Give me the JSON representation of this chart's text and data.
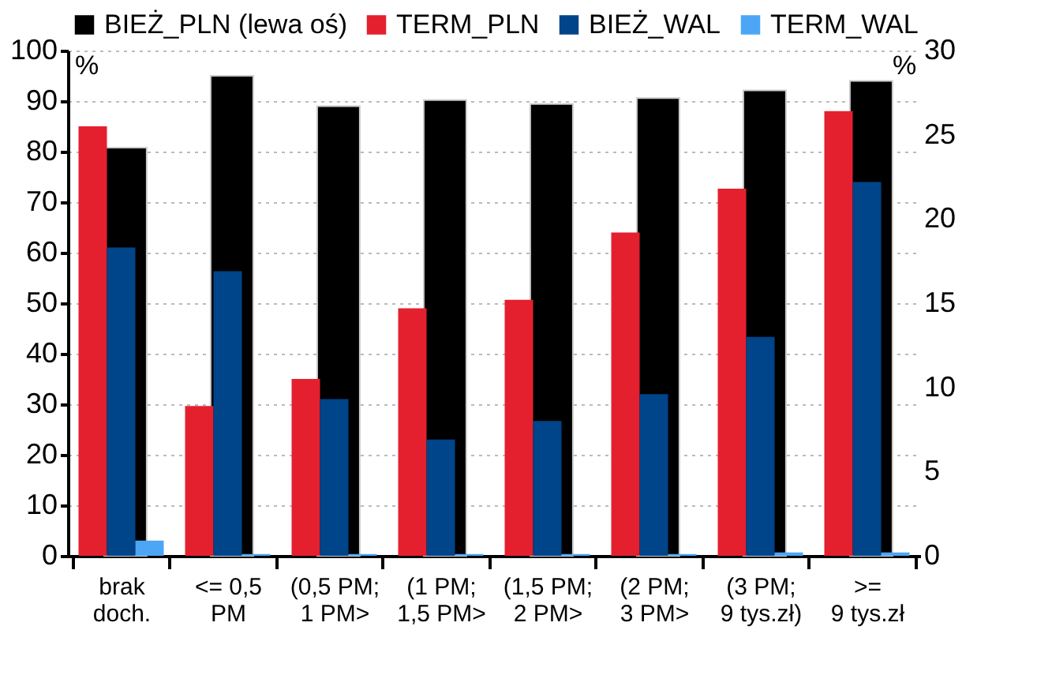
{
  "chart_data": {
    "type": "bar",
    "categories": [
      "brak\ndoch.",
      "<= 0,5\nPM",
      "(0,5 PM;\n1 PM>",
      "(1 PM;\n1,5 PM>",
      "(1,5 PM;\n2 PM>",
      "(2 PM;\n3 PM>",
      "(3 PM;\n9 tys.zł)",
      ">=\n9 tys.zł"
    ],
    "series": [
      {
        "name": "BIEŻ_PLN (lewa oś)",
        "color": "#000000",
        "axis": "y",
        "values": [
          80.8,
          95.0,
          89.0,
          90.2,
          89.4,
          90.6,
          92.1,
          94.0
        ]
      },
      {
        "name": "TERM_PLN",
        "color": "#e4202e",
        "axis": "y2",
        "values": [
          25.5,
          8.9,
          10.5,
          14.7,
          15.2,
          19.2,
          21.8,
          26.4
        ]
      },
      {
        "name": "BIEŻ_WAL",
        "color": "#004489",
        "axis": "y2",
        "values": [
          18.3,
          16.9,
          9.3,
          6.9,
          8.0,
          9.6,
          13.0,
          22.2
        ]
      },
      {
        "name": "TERM_WAL",
        "color": "#4da6f5",
        "axis": "y2",
        "values": [
          0.9,
          0.1,
          0.1,
          0.1,
          0.1,
          0.1,
          0.2,
          0.2
        ]
      }
    ],
    "ylim": [
      0,
      100
    ],
    "yticks": [
      0,
      10,
      20,
      30,
      40,
      50,
      60,
      70,
      80,
      90,
      100
    ],
    "y2lim": [
      0,
      30
    ],
    "y2ticks": [
      0,
      5,
      10,
      15,
      20,
      25,
      30
    ],
    "annotations": [
      "%",
      "%"
    ],
    "grid": "y",
    "legend": "top"
  }
}
